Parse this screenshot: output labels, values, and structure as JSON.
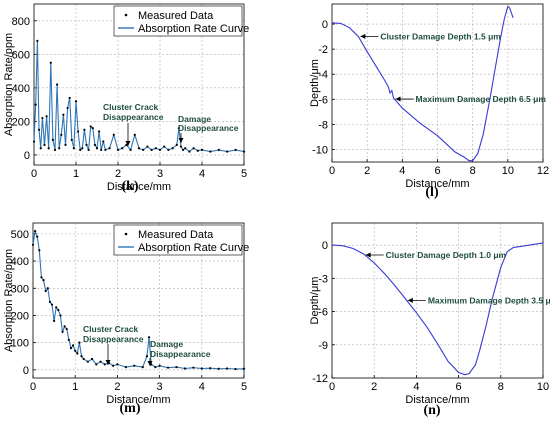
{
  "chart_data": [
    {
      "id": "k",
      "type": "line",
      "panel_label": "(k)",
      "xlabel": "Distance/mm",
      "ylabel": "Absorption Rate/ppm",
      "xlim": [
        0,
        5
      ],
      "ylim": [
        -60,
        900
      ],
      "xticks": [
        0,
        1,
        2,
        3,
        4,
        5
      ],
      "yticks": [
        0,
        200,
        400,
        600,
        800
      ],
      "grid": true,
      "legend_position": "top-right",
      "legend": [
        "Measured Data",
        "Absorption Rate Curve"
      ],
      "series": [
        {
          "name": "Measured Data",
          "style": "points"
        },
        {
          "name": "Absorption Rate Curve",
          "style": "line"
        }
      ],
      "x": [
        0.0,
        0.04,
        0.08,
        0.12,
        0.16,
        0.2,
        0.25,
        0.3,
        0.35,
        0.4,
        0.45,
        0.5,
        0.55,
        0.6,
        0.65,
        0.7,
        0.75,
        0.8,
        0.85,
        0.9,
        0.95,
        1.0,
        1.05,
        1.1,
        1.15,
        1.2,
        1.25,
        1.3,
        1.35,
        1.4,
        1.45,
        1.5,
        1.55,
        1.6,
        1.65,
        1.7,
        1.8,
        1.9,
        2.0,
        2.1,
        2.2,
        2.3,
        2.4,
        2.5,
        2.6,
        2.7,
        2.8,
        2.9,
        3.0,
        3.1,
        3.2,
        3.3,
        3.4,
        3.45,
        3.5,
        3.55,
        3.6,
        3.7,
        3.8,
        3.9,
        4.0,
        4.2,
        4.4,
        4.6,
        4.8,
        5.0
      ],
      "y": [
        80,
        300,
        680,
        150,
        40,
        220,
        60,
        230,
        40,
        550,
        90,
        30,
        420,
        40,
        120,
        240,
        60,
        280,
        340,
        90,
        40,
        320,
        140,
        30,
        40,
        150,
        60,
        30,
        170,
        160,
        60,
        40,
        140,
        30,
        80,
        30,
        40,
        120,
        30,
        40,
        60,
        30,
        120,
        40,
        30,
        50,
        30,
        40,
        30,
        50,
        30,
        40,
        60,
        160,
        50,
        30,
        40,
        20,
        40,
        25,
        30,
        20,
        30,
        20,
        30,
        20
      ]
    },
    {
      "id": "l",
      "type": "line",
      "panel_label": "(l)",
      "xlabel": "Distance/mm",
      "ylabel": "Depth/μm",
      "xlim": [
        0,
        12
      ],
      "ylim": [
        -11,
        1.6
      ],
      "xticks": [
        0,
        2,
        4,
        6,
        8,
        10,
        12
      ],
      "yticks": [
        0,
        -2,
        -4,
        -6,
        -8,
        -10
      ],
      "grid": true,
      "series": [
        {
          "name": "",
          "style": "line"
        }
      ],
      "x": [
        0,
        0.5,
        1.0,
        1.5,
        2.0,
        3.0,
        3.2,
        3.3,
        3.4,
        3.5,
        4.0,
        5.0,
        6.0,
        7.0,
        7.5,
        7.8,
        8.0,
        8.3,
        8.6,
        9.0,
        9.3,
        9.6,
        9.8,
        10.0,
        10.1,
        10.3
      ],
      "y": [
        0.1,
        0.05,
        -0.3,
        -1.0,
        -2.2,
        -4.5,
        -5.0,
        -5.5,
        -5.3,
        -5.9,
        -6.7,
        -7.9,
        -8.9,
        -10.2,
        -10.6,
        -10.9,
        -10.9,
        -10.3,
        -8.8,
        -5.8,
        -3.4,
        -1.0,
        0.4,
        1.4,
        1.3,
        0.5
      ],
      "annotations": [
        {
          "text": "Cluster Damage Depth 1.5 μm",
          "x": 1.5,
          "y": -0.9
        },
        {
          "text": "Maximum Damage Depth 6.5 μm",
          "x": 3.5,
          "y": -5.9
        }
      ]
    },
    {
      "id": "m",
      "type": "line",
      "panel_label": "(m)",
      "xlabel": "Distance/mm",
      "ylabel": "Absorption Rate/ppm",
      "xlim": [
        0,
        5
      ],
      "ylim": [
        -30,
        540
      ],
      "xticks": [
        0,
        1,
        2,
        3,
        4,
        5
      ],
      "yticks": [
        0,
        100,
        200,
        300,
        400,
        500
      ],
      "grid": true,
      "legend_position": "top-right",
      "legend": [
        "Measured Data",
        "Absorption Rate Curve"
      ],
      "series": [
        {
          "name": "Measured Data",
          "style": "points"
        },
        {
          "name": "Absorption Rate Curve",
          "style": "line"
        }
      ],
      "x": [
        0.0,
        0.05,
        0.1,
        0.15,
        0.2,
        0.25,
        0.3,
        0.35,
        0.4,
        0.45,
        0.5,
        0.55,
        0.6,
        0.65,
        0.7,
        0.75,
        0.8,
        0.85,
        0.9,
        0.95,
        1.0,
        1.05,
        1.1,
        1.15,
        1.2,
        1.3,
        1.4,
        1.5,
        1.6,
        1.7,
        1.8,
        1.9,
        2.0,
        2.2,
        2.4,
        2.6,
        2.7,
        2.75,
        2.8,
        2.9,
        3.0,
        3.2,
        3.4,
        3.6,
        3.8,
        4.0,
        4.2,
        4.4,
        4.6,
        4.8,
        5.0
      ],
      "y": [
        460,
        510,
        490,
        440,
        340,
        330,
        290,
        300,
        250,
        240,
        180,
        230,
        220,
        200,
        140,
        160,
        150,
        110,
        80,
        90,
        70,
        60,
        100,
        50,
        40,
        30,
        40,
        20,
        30,
        20,
        25,
        15,
        20,
        10,
        15,
        10,
        50,
        120,
        20,
        10,
        15,
        8,
        10,
        5,
        8,
        5,
        6,
        4,
        5,
        3,
        4
      ],
      "annotations": []
    },
    {
      "id": "n",
      "type": "line",
      "panel_label": "(n)",
      "xlabel": "Distance/mm",
      "ylabel": "Depth/μm",
      "xlim": [
        0,
        10
      ],
      "ylim": [
        -12,
        2
      ],
      "xticks": [
        0,
        2,
        4,
        6,
        8,
        10
      ],
      "yticks": [
        0,
        -3,
        -6,
        -9,
        -12
      ],
      "grid": true,
      "series": [
        {
          "name": "",
          "style": "line"
        }
      ],
      "x": [
        0,
        0.5,
        1.0,
        1.5,
        2.0,
        2.5,
        3.0,
        3.5,
        4.0,
        4.5,
        5.0,
        5.5,
        6.0,
        6.3,
        6.5,
        6.8,
        7.0,
        7.3,
        7.6,
        8.0,
        8.3,
        8.6,
        9.0,
        9.5,
        10.0
      ],
      "y": [
        0,
        -0.05,
        -0.3,
        -0.8,
        -1.6,
        -2.6,
        -3.7,
        -4.9,
        -6.1,
        -7.4,
        -8.9,
        -10.5,
        -11.5,
        -11.7,
        -11.6,
        -10.8,
        -9.5,
        -7.3,
        -4.8,
        -2.0,
        -0.6,
        -0.2,
        -0.1,
        0.05,
        0.2
      ],
      "annotations": [
        {
          "text": "Cluster Damage Depth 1.0 μm",
          "x": 1.5,
          "y": -0.8
        },
        {
          "text": "Maximum Damage Depth 3.5 μm",
          "x": 3.5,
          "y": -4.9
        }
      ]
    }
  ],
  "text": {
    "k_ann1a": "Cluster Crack",
    "k_ann1b": "Disappearance",
    "k_ann2a": "Damage",
    "k_ann2b": "Disappearance",
    "m_ann1a": "Cluster Crack",
    "m_ann1b": "Disappearance",
    "m_ann2a": "Damage",
    "m_ann2b": "Disappearance"
  },
  "colors": {
    "curve": "#2e75b6",
    "points": "#000000",
    "grid": "#b0b0b0",
    "annotation": "#1f4e3d",
    "depth_line": "#3a3ad6"
  }
}
